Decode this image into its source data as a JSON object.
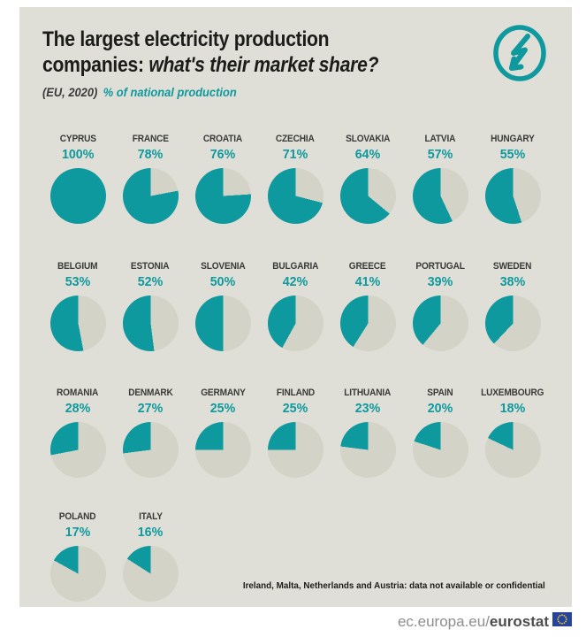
{
  "header": {
    "title_line1": "The largest electricity production",
    "title_line2_bold": "companies:",
    "title_line2_italic": " what's their market share?",
    "subtitle_scope": "(EU, 2020)",
    "subtitle_unit": "% of national production",
    "icon": "electricity-lightning-bolt-icon"
  },
  "colors": {
    "teal": "#0e999e",
    "card_background": "#dfdfd7",
    "empty_slice": "#d3d4c7",
    "title_text": "#1c1c1a",
    "country_label": "#3a3a38",
    "footer_gray": "#8e8e8e",
    "footer_dark": "#4c4c4c",
    "eu_flag_blue": "#2444a0",
    "eu_flag_stars": "#ffcc00"
  },
  "chart_data": {
    "type": "pie",
    "title": "The largest electricity production companies: what's their market share?",
    "scope": "(EU, 2020)",
    "unit": "% of national production",
    "layout": "grid of 23 mini pie charts, 7 per row, filled clockwise ending at 12 o'clock (gap starts at top)",
    "series": [
      {
        "country": "CYPRUS",
        "value": 100
      },
      {
        "country": "FRANCE",
        "value": 78
      },
      {
        "country": "CROATIA",
        "value": 76
      },
      {
        "country": "CZECHIA",
        "value": 71
      },
      {
        "country": "SLOVAKIA",
        "value": 64
      },
      {
        "country": "LATVIA",
        "value": 57
      },
      {
        "country": "HUNGARY",
        "value": 55
      },
      {
        "country": "BELGIUM",
        "value": 53
      },
      {
        "country": "ESTONIA",
        "value": 52
      },
      {
        "country": "SLOVENIA",
        "value": 50
      },
      {
        "country": "BULGARIA",
        "value": 42
      },
      {
        "country": "GREECE",
        "value": 41
      },
      {
        "country": "PORTUGAL",
        "value": 39
      },
      {
        "country": "SWEDEN",
        "value": 38
      },
      {
        "country": "ROMANIA",
        "value": 28
      },
      {
        "country": "DENMARK",
        "value": 27
      },
      {
        "country": "GERMANY",
        "value": 25
      },
      {
        "country": "FINLAND",
        "value": 25
      },
      {
        "country": "LITHUANIA",
        "value": 23
      },
      {
        "country": "SPAIN",
        "value": 20
      },
      {
        "country": "LUXEMBOURG",
        "value": 18
      },
      {
        "country": "POLAND",
        "value": 17
      },
      {
        "country": "ITALY",
        "value": 16
      }
    ]
  },
  "footnote": "Ireland, Malta, Netherlands and Austria: data not available or confidential",
  "footer": {
    "url_regular": "ec.europa.eu/",
    "url_bold": "eurostat",
    "flag": "eu-flag"
  }
}
